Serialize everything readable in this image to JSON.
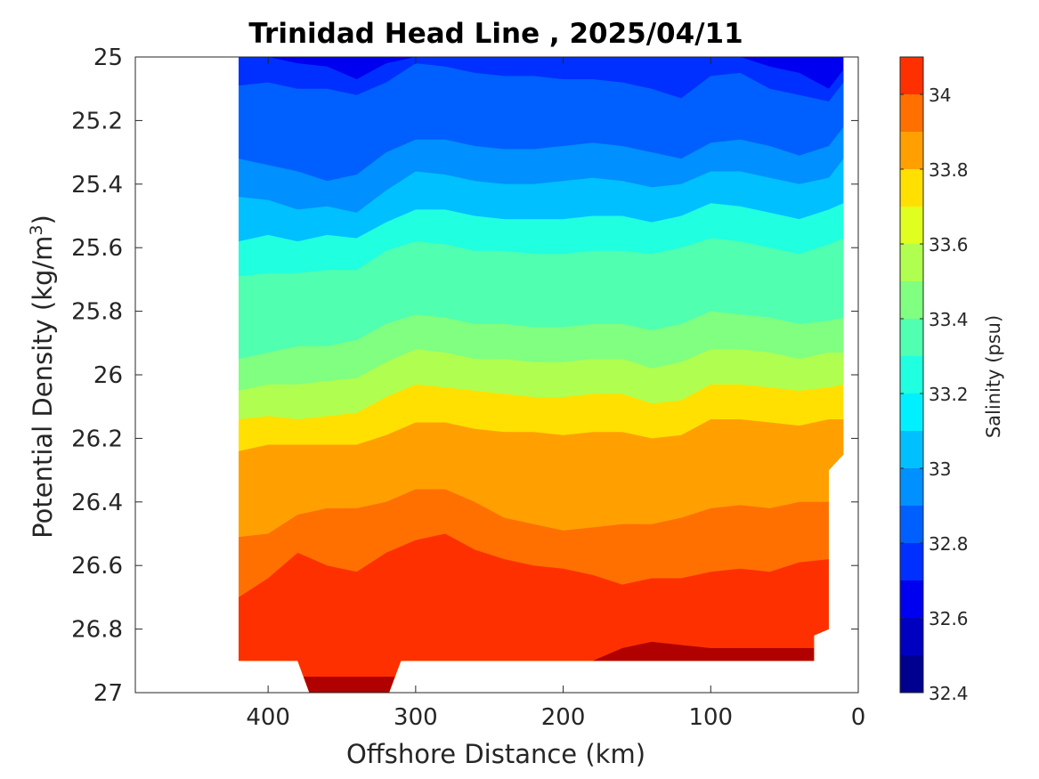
{
  "chart_data": {
    "type": "heatmap",
    "subtype": "filled-contour section",
    "title": "Trinidad Head Line , 2025/04/11",
    "xlabel": "Offshore Distance (km)",
    "ylabel_main": "Potential Density (kg/m",
    "ylabel_sup": "3",
    "ylabel_close": ")",
    "colorbar_label": "Salinity (psu)",
    "xlim": [
      490,
      0
    ],
    "x_reversed": true,
    "ylim": [
      25,
      27
    ],
    "y_reversed": true,
    "x_ticks": [
      400,
      300,
      200,
      100,
      0
    ],
    "x_tick_labels": [
      "400",
      "300",
      "200",
      "100",
      "0"
    ],
    "y_ticks": [
      25,
      25.2,
      25.4,
      25.6,
      25.8,
      26,
      26.2,
      26.4,
      26.6,
      26.8,
      27
    ],
    "y_tick_labels": [
      "25",
      "25.2",
      "25.4",
      "25.6",
      "25.8",
      "26",
      "26.2",
      "26.4",
      "26.6",
      "26.8",
      "27"
    ],
    "colorbar": {
      "levels": [
        32.4,
        32.5,
        32.6,
        32.7,
        32.8,
        32.9,
        33.0,
        33.1,
        33.2,
        33.3,
        33.4,
        33.5,
        33.6,
        33.7,
        33.8,
        33.9,
        34.0,
        34.1
      ],
      "colors": [
        "#00008f",
        "#0000c0",
        "#0000f0",
        "#0020ff",
        "#0050ff",
        "#0080ff",
        "#00b0ff",
        "#00e0ff",
        "#10ffef",
        "#40ffbf",
        "#70ff8f",
        "#a0ff60",
        "#d0ff30",
        "#ffe000",
        "#ffa000",
        "#ff7000",
        "#ff4000",
        "#f00000",
        "#c00000",
        "#a00000",
        "#800000"
      ],
      "band_colors": [
        "#00008f",
        "#0000c0",
        "#0000f0",
        "#0030ff",
        "#0060ff",
        "#0090ff",
        "#00c0ff",
        "#00f0ff",
        "#20ffdf",
        "#50ffaf",
        "#80ff80",
        "#b0ff50",
        "#e0ff20",
        "#ffe000",
        "#ffa000",
        "#ff7000",
        "#ff3000",
        "#e80000",
        "#b00000"
      ],
      "tick_values": [
        32.4,
        32.6,
        32.8,
        33.0,
        33.2,
        33.4,
        33.6,
        33.8,
        34.0
      ],
      "tick_labels": [
        "32.4",
        "32.6",
        "32.8",
        "33",
        "33.2",
        "33.4",
        "33.6",
        "33.8",
        "34"
      ]
    },
    "section": {
      "x_extent_km": [
        420,
        10
      ],
      "stations_km": [
        420,
        400,
        380,
        360,
        340,
        320,
        300,
        280,
        260,
        240,
        220,
        200,
        180,
        160,
        140,
        120,
        100,
        80,
        60,
        40,
        20,
        10
      ],
      "isohalines": [
        {
          "salinity": 32.6,
          "y": [
            25.0,
            25.0,
            25.02,
            25.03,
            25.07,
            25.02,
            25.0,
            25.0,
            25.0,
            25.0,
            25.0,
            25.0,
            25.0,
            25.0,
            25.0,
            25.0,
            25.0,
            25.0,
            25.03,
            25.05,
            25.1,
            25.04
          ]
        },
        {
          "salinity": 32.7,
          "y": [
            25.09,
            25.08,
            25.1,
            25.1,
            25.12,
            25.08,
            25.02,
            25.03,
            25.05,
            25.06,
            25.06,
            25.07,
            25.07,
            25.08,
            25.1,
            25.13,
            25.06,
            25.05,
            25.1,
            25.12,
            25.14,
            25.08
          ]
        },
        {
          "salinity": 32.8,
          "y": [
            25.18,
            25.22,
            25.25,
            25.25,
            25.26,
            25.18,
            25.14,
            25.16,
            25.18,
            25.19,
            25.19,
            25.19,
            25.18,
            25.19,
            25.21,
            25.24,
            25.18,
            25.16,
            25.2,
            25.22,
            25.22,
            25.15
          ]
        },
        {
          "salinity": 32.9,
          "y": [
            25.32,
            25.34,
            25.36,
            25.39,
            25.37,
            25.3,
            25.26,
            25.26,
            25.28,
            25.29,
            25.29,
            25.28,
            25.27,
            25.28,
            25.3,
            25.32,
            25.27,
            25.26,
            25.28,
            25.31,
            25.28,
            25.22
          ]
        },
        {
          "salinity": 33.0,
          "y": [
            25.44,
            25.45,
            25.48,
            25.47,
            25.49,
            25.42,
            25.36,
            25.37,
            25.39,
            25.4,
            25.4,
            25.39,
            25.38,
            25.39,
            25.41,
            25.4,
            25.36,
            25.36,
            25.38,
            25.4,
            25.38,
            25.32
          ]
        },
        {
          "salinity": 33.1,
          "y": [
            25.58,
            25.56,
            25.58,
            25.56,
            25.57,
            25.52,
            25.48,
            25.48,
            25.5,
            25.51,
            25.51,
            25.51,
            25.5,
            25.5,
            25.52,
            25.5,
            25.46,
            25.47,
            25.49,
            25.51,
            25.48,
            25.46
          ]
        },
        {
          "salinity": 33.2,
          "y": [
            25.69,
            25.68,
            25.68,
            25.67,
            25.67,
            25.61,
            25.58,
            25.59,
            25.61,
            25.61,
            25.62,
            25.62,
            25.61,
            25.61,
            25.62,
            25.6,
            25.57,
            25.58,
            25.6,
            25.62,
            25.59,
            25.57
          ]
        },
        {
          "salinity": 33.3,
          "y": [
            25.83,
            25.81,
            25.8,
            25.79,
            25.78,
            25.73,
            25.7,
            25.71,
            25.72,
            25.72,
            25.73,
            25.73,
            25.72,
            25.72,
            25.74,
            25.72,
            25.69,
            25.7,
            25.71,
            25.72,
            25.71,
            25.68
          ]
        },
        {
          "salinity": 33.4,
          "y": [
            25.95,
            25.93,
            25.91,
            25.91,
            25.89,
            25.84,
            25.81,
            25.82,
            25.84,
            25.84,
            25.85,
            25.85,
            25.84,
            25.84,
            25.86,
            25.84,
            25.8,
            25.81,
            25.82,
            25.84,
            25.83,
            25.82
          ]
        },
        {
          "salinity": 33.5,
          "y": [
            26.05,
            26.03,
            26.03,
            26.02,
            26.01,
            25.96,
            25.92,
            25.93,
            25.95,
            25.95,
            25.96,
            25.96,
            25.95,
            25.95,
            25.98,
            25.96,
            25.92,
            25.92,
            25.93,
            25.95,
            25.93,
            25.93
          ]
        },
        {
          "salinity": 33.6,
          "y": [
            26.14,
            26.13,
            26.14,
            26.13,
            26.12,
            26.07,
            26.03,
            26.04,
            26.05,
            26.06,
            26.07,
            26.07,
            26.06,
            26.06,
            26.09,
            26.08,
            26.03,
            26.03,
            26.04,
            26.05,
            26.04,
            26.03
          ]
        },
        {
          "salinity": 33.7,
          "y": [
            26.24,
            26.22,
            26.22,
            26.22,
            26.22,
            26.19,
            26.15,
            26.15,
            26.17,
            26.18,
            26.18,
            26.19,
            26.18,
            26.18,
            26.2,
            26.19,
            26.14,
            26.14,
            26.15,
            26.16,
            26.14,
            26.14
          ]
        },
        {
          "salinity": 33.8,
          "y": [
            26.35,
            26.34,
            26.35,
            26.35,
            26.34,
            26.31,
            26.29,
            26.29,
            26.29,
            26.29,
            26.29,
            26.3,
            26.3,
            26.31,
            26.34,
            26.32,
            26.27,
            26.26,
            26.27,
            26.28,
            26.27,
            26.25
          ]
        },
        {
          "salinity": 33.9,
          "y": [
            26.51,
            26.5,
            26.44,
            26.42,
            26.42,
            26.4,
            26.36,
            26.36,
            26.4,
            26.45,
            26.47,
            26.49,
            26.48,
            26.47,
            26.47,
            26.45,
            26.42,
            26.41,
            26.42,
            26.4,
            26.4,
            26.4
          ]
        },
        {
          "salinity": 34.0,
          "y": [
            26.7,
            26.64,
            26.56,
            26.6,
            26.62,
            26.56,
            26.52,
            26.5,
            26.55,
            26.58,
            26.6,
            26.61,
            26.63,
            26.66,
            26.64,
            26.64,
            26.62,
            26.61,
            26.62,
            26.59,
            26.58,
            26.58
          ]
        },
        {
          "salinity": 34.1,
          "y": [
            26.95,
            26.95,
            26.95,
            26.95,
            26.95,
            26.95,
            26.95,
            26.95,
            26.95,
            26.95,
            26.95,
            26.95,
            26.9,
            26.86,
            26.84,
            26.85,
            26.86,
            26.86,
            26.86,
            26.86,
            26.86,
            26.86
          ]
        }
      ],
      "bottom_y": [
        26.9,
        26.9,
        26.9,
        27.0,
        27.0,
        26.9,
        26.9,
        26.9,
        26.9,
        26.9,
        26.9,
        26.9,
        26.9,
        26.9,
        26.9,
        26.9,
        26.9,
        26.9,
        26.9,
        26.9,
        26.9,
        26.9
      ],
      "deep_basin_bottom_x_km": [
        380,
        370,
        320,
        310
      ],
      "bottom_right_notch_x_km": [
        30,
        20,
        10
      ],
      "right_boundary_y": [
        26.25,
        26.3,
        26.57,
        26.8,
        26.9
      ]
    }
  }
}
